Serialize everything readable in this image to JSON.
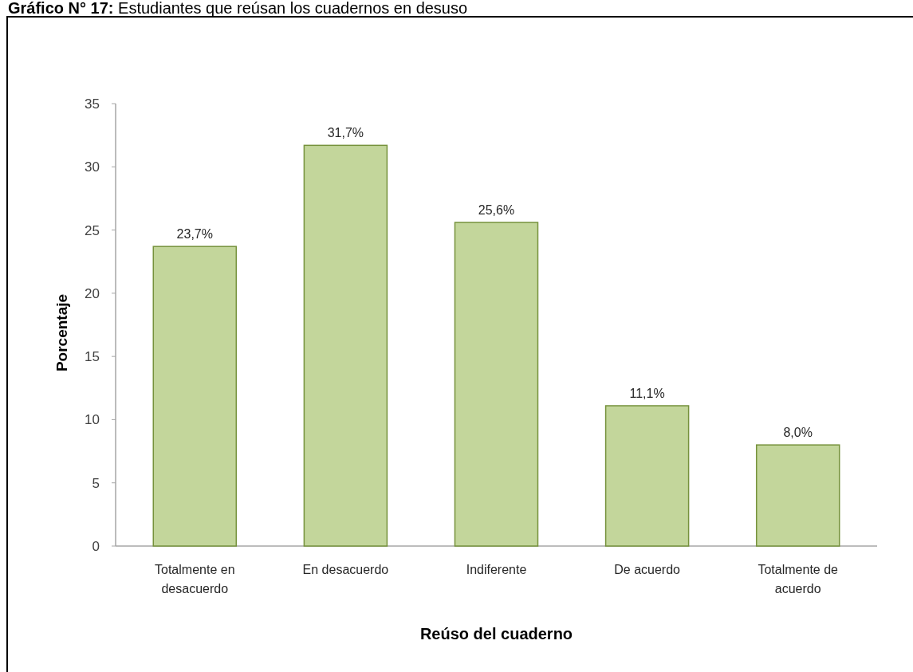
{
  "chart_data": {
    "type": "bar",
    "title": "Gráfico N° 17: Estudiantes que reúsan los cuadernos en desuso",
    "xlabel": "Reúso del cuaderno",
    "ylabel": "Porcentaje",
    "categories": [
      "Totalmente en desacuerdo",
      "En desacuerdo",
      "Indiferente",
      "De acuerdo",
      "Totalmente de acuerdo"
    ],
    "values": [
      23.7,
      31.7,
      25.6,
      11.1,
      8.0
    ],
    "value_labels": [
      "23,7%",
      "31,7%",
      "25,6%",
      "11,1%",
      "8,0%"
    ],
    "color": "#c3d69b",
    "ylim": [
      0,
      35
    ],
    "yticks": [
      0,
      5,
      10,
      15,
      20,
      25,
      30,
      35
    ],
    "grid": false
  }
}
